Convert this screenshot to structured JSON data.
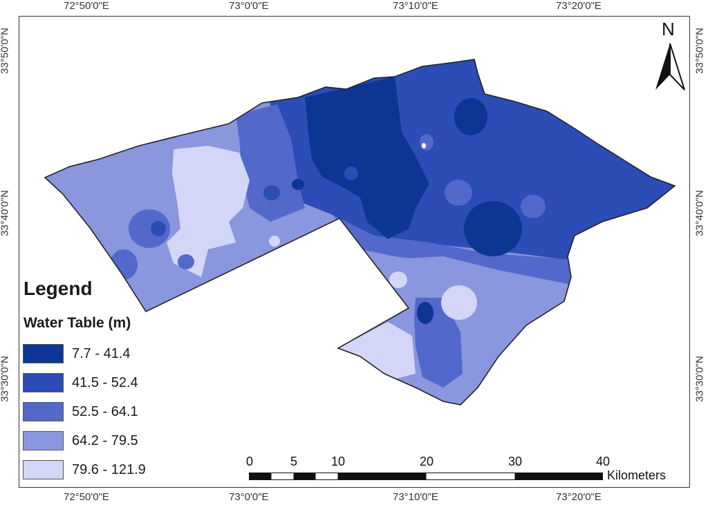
{
  "map": {
    "top_labels": [
      "72°50'0\"E",
      "73°0'0\"E",
      "73°10'0\"E",
      "73°20'0\"E"
    ],
    "bottom_labels": [
      "72°50'0\"E",
      "73°0'0\"E",
      "73°10'0\"E",
      "73°20'0\"E"
    ],
    "left_labels": [
      "33°50'0\"N",
      "33°40'0\"N",
      "33°30'0\"N"
    ],
    "right_labels": [
      "33°50'0\"N",
      "33°40'0\"N",
      "33°30'0\"N"
    ]
  },
  "legend": {
    "title": "Legend",
    "subtitle": "Water Table (m)",
    "classes": [
      {
        "label": "7.7 - 41.4",
        "color": "#0d3593"
      },
      {
        "label": "41.5 - 52.4",
        "color": "#2b4db5"
      },
      {
        "label": "52.5 - 64.1",
        "color": "#5368cb"
      },
      {
        "label": "64.2 - 79.5",
        "color": "#8a96dd"
      },
      {
        "label": "79.6 - 121.9",
        "color": "#d3d6f7"
      }
    ]
  },
  "north": {
    "label": "N",
    "icon": "north-arrow-icon"
  },
  "scale": {
    "ticks": [
      "0",
      "5",
      "10",
      "20",
      "30",
      "40"
    ],
    "unit": "Kilometers"
  },
  "colors": {
    "outline": "#222222",
    "frame": "#333333"
  }
}
